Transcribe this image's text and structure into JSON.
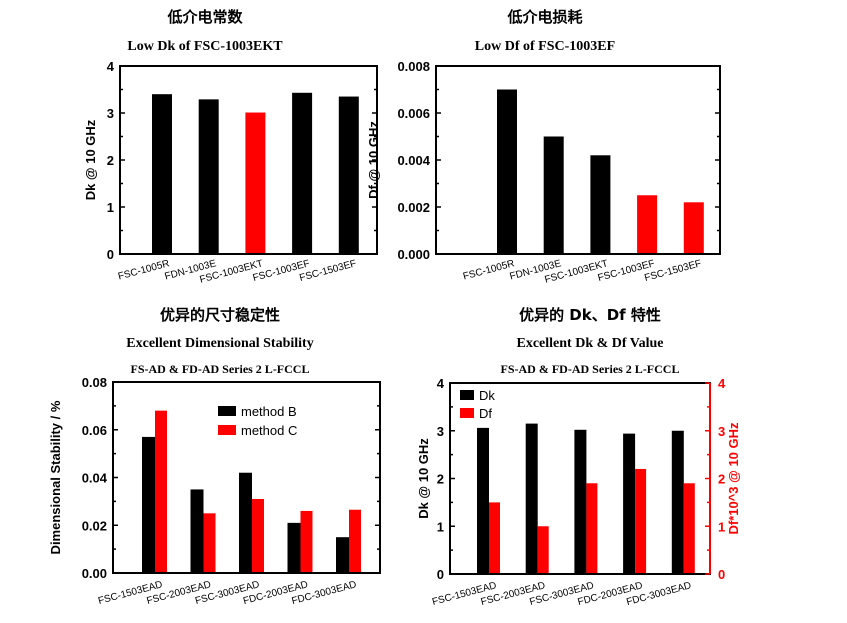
{
  "colors": {
    "black": "#000000",
    "red": "#ff0000"
  },
  "chart_data": [
    {
      "type": "bar",
      "title": "低介电常数",
      "subtitle": "Low Dk of FSC-1003EKT",
      "ylabel": "Dk @ 10 GHz",
      "ylim": [
        0,
        4
      ],
      "yticks": [
        "0",
        "1",
        "2",
        "3",
        "4"
      ],
      "categories": [
        "FSC-1005R",
        "FDN-1003E",
        "FSC-1003EKT",
        "FSC-1003EF",
        "FSC-1503EF"
      ],
      "values": [
        3.4,
        3.29,
        3.01,
        3.43,
        3.35
      ],
      "bar_colors": [
        "#000000",
        "#000000",
        "#ff0000",
        "#000000",
        "#000000"
      ]
    },
    {
      "type": "bar",
      "title": "低介电损耗",
      "subtitle": "Low Df of FSC-1003EF",
      "ylabel": "Df @ 10 GHz",
      "ylim": [
        0,
        0.008
      ],
      "yticks": [
        "0.000",
        "0.002",
        "0.004",
        "0.006",
        "0.008"
      ],
      "categories": [
        "FSC-1005R",
        "FDN-1003E",
        "FSC-1003EKT",
        "FSC-1003EF",
        "FSC-1503EF"
      ],
      "values": [
        0.007,
        0.005,
        0.0042,
        0.0025,
        0.0022
      ],
      "bar_colors": [
        "#000000",
        "#000000",
        "#000000",
        "#ff0000",
        "#ff0000"
      ]
    },
    {
      "type": "bar",
      "title": "优异的尺寸稳定性",
      "subtitle": "Excellent Dimensional Stability",
      "subtitle2": "FS-AD & FD-AD Series 2 L-FCCL",
      "ylabel": "Dimensional Stability / %",
      "ylim": [
        0,
        0.08
      ],
      "yticks": [
        "0.00",
        "0.02",
        "0.04",
        "0.06",
        "0.08"
      ],
      "categories": [
        "FSC-1503EAD",
        "FSC-2003EAD",
        "FSC-3003EAD",
        "FDC-2003EAD",
        "FDC-3003EAD"
      ],
      "series": [
        {
          "name": "method B",
          "color": "#000000",
          "values": [
            0.057,
            0.035,
            0.042,
            0.021,
            0.015
          ]
        },
        {
          "name": "method C",
          "color": "#ff0000",
          "values": [
            0.068,
            0.025,
            0.031,
            0.026,
            0.0265
          ]
        }
      ],
      "legend": "top-right"
    },
    {
      "type": "bar",
      "title": "优异的 Dk、Df 特性",
      "subtitle": "Excellent Dk & Df Value",
      "subtitle2": "FS-AD & FD-AD Series 2 L-FCCL",
      "ylabel": "Dk @ 10 GHz",
      "y2label": "Df*10^3 @ 10 GHz",
      "ylim": [
        0,
        4
      ],
      "y2lim": [
        0,
        4
      ],
      "yticks": [
        "0",
        "1",
        "2",
        "3",
        "4"
      ],
      "categories": [
        "FSC-1503EAD",
        "FSC-2003EAD",
        "FSC-3003EAD",
        "FDC-2003EAD",
        "FDC-3003EAD"
      ],
      "series": [
        {
          "name": "Dk",
          "color": "#000000",
          "axis": "left",
          "values": [
            3.06,
            3.15,
            3.02,
            2.94,
            3.0
          ]
        },
        {
          "name": "Df",
          "color": "#ff0000",
          "axis": "right",
          "values": [
            1.5,
            1.0,
            1.9,
            2.2,
            1.9
          ]
        }
      ],
      "legend": "top-left"
    }
  ]
}
